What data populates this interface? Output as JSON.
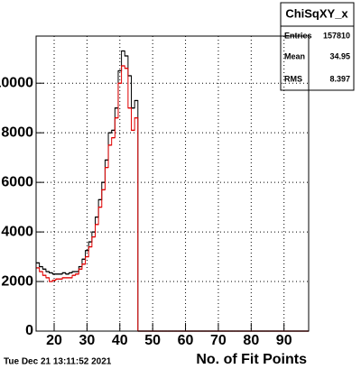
{
  "chart_data": {
    "type": "histogram",
    "stats": {
      "title": "ChiSqXY_x",
      "entries_label": "Entries",
      "entries": 157810,
      "mean_label": "Mean",
      "mean": 34.95,
      "rms_label": "RMS",
      "rms": 8.397
    },
    "xlabel": "No. of Fit Points",
    "date": "Tue Dec 21 13:11:52 2021",
    "bins": [
      14.5,
      15.5,
      16.5,
      17.5,
      18.5,
      19.5,
      20.5,
      21.5,
      22.5,
      23.5,
      24.5,
      25.5,
      26.5,
      27.5,
      28.5,
      29.5,
      30.5,
      31.5,
      32.5,
      33.5,
      34.5,
      35.5,
      36.5,
      37.5,
      38.5,
      39.5,
      40.5,
      41.5,
      42.5,
      43.5,
      44.5,
      45.5,
      46.5,
      47.5,
      48.5,
      49.5,
      50.5,
      51.5,
      52.5,
      53.5,
      54.5,
      55.5,
      56.5,
      57.5,
      58.5,
      59.5,
      60.5,
      61.5,
      62.5,
      63.5,
      64.5,
      65.5,
      66.5,
      67.5,
      68.5,
      69.5,
      70.5,
      71.5,
      72.5,
      73.5,
      74.5,
      75.5,
      76.5,
      77.5,
      78.5,
      79.5,
      80.5,
      81.5,
      82.5,
      83.5,
      84.5,
      85.5,
      86.5,
      87.5,
      88.5,
      89.5,
      90.5,
      91.5,
      92.5,
      93.5,
      94.5,
      95.5,
      96.5,
      97.5
    ],
    "series": [
      {
        "color": "#000000",
        "values": [
          2750,
          2600,
          2500,
          2400,
          2350,
          2300,
          2300,
          2300,
          2350,
          2300,
          2350,
          2400,
          2400,
          2600,
          2900,
          3250,
          3600,
          4000,
          4600,
          5300,
          6000,
          6900,
          8000,
          8100,
          9000,
          10500,
          11300,
          11100,
          10300,
          9000,
          9300,
          0,
          0,
          0,
          0,
          0,
          0,
          0,
          0,
          0,
          0,
          0,
          0,
          0,
          0,
          0,
          0,
          0,
          0,
          0,
          0,
          0,
          0,
          0,
          0,
          0,
          0,
          0,
          0,
          0,
          0,
          0,
          0,
          0,
          0,
          0,
          0,
          0,
          0,
          0,
          0,
          0,
          0,
          0,
          0,
          0,
          0,
          0,
          0,
          0,
          0,
          0,
          0
        ]
      },
      {
        "color": "#e00000",
        "values": [
          2550,
          2400,
          2250,
          2150,
          2000,
          2050,
          2100,
          2100,
          2150,
          2150,
          2150,
          2250,
          2300,
          2500,
          2700,
          3000,
          3400,
          3800,
          4300,
          5000,
          5700,
          6600,
          7500,
          7800,
          8600,
          10000,
          10700,
          10600,
          9000,
          8100,
          8600,
          0,
          0,
          0,
          0,
          0,
          0,
          0,
          0,
          0,
          0,
          0,
          0,
          0,
          0,
          0,
          0,
          0,
          0,
          0,
          0,
          0,
          0,
          0,
          0,
          0,
          0,
          0,
          0,
          0,
          0,
          0,
          0,
          0,
          0,
          0,
          0,
          0,
          0,
          0,
          0,
          0,
          0,
          0,
          0,
          0,
          0,
          0,
          0,
          0,
          0,
          0,
          0
        ]
      }
    ],
    "xlim": [
      14.5,
      97.5
    ],
    "xticks": [
      20,
      30,
      40,
      50,
      60,
      70,
      80,
      90
    ],
    "ylim": [
      0,
      11900
    ],
    "yticks": [
      0,
      2000,
      4000,
      6000,
      8000,
      10000
    ],
    "grid": true
  }
}
